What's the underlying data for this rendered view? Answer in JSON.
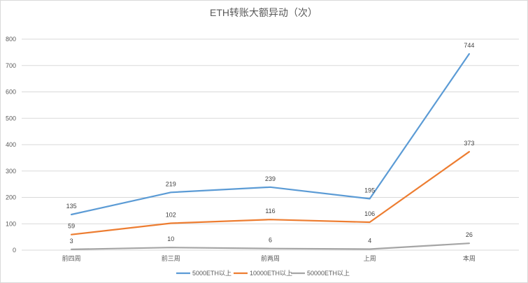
{
  "chart_data": {
    "type": "line",
    "title": "ETH转账大额异动（次）",
    "categories": [
      "前四周",
      "前三周",
      "前两周",
      "上周",
      "本周"
    ],
    "ylim": [
      0,
      800
    ],
    "yticks": [
      0,
      100,
      200,
      300,
      400,
      500,
      600,
      700,
      800
    ],
    "grid": true,
    "legend_position": "bottom",
    "series": [
      {
        "name": "5000ETH以上",
        "color": "#5b9bd5",
        "values": [
          135,
          219,
          239,
          195,
          744
        ]
      },
      {
        "name": "10000ETH以上",
        "color": "#ed7d31",
        "values": [
          59,
          102,
          116,
          106,
          373
        ]
      },
      {
        "name": "50000ETH以上",
        "color": "#a5a5a5",
        "values": [
          3,
          10,
          6,
          4,
          26
        ]
      }
    ]
  }
}
